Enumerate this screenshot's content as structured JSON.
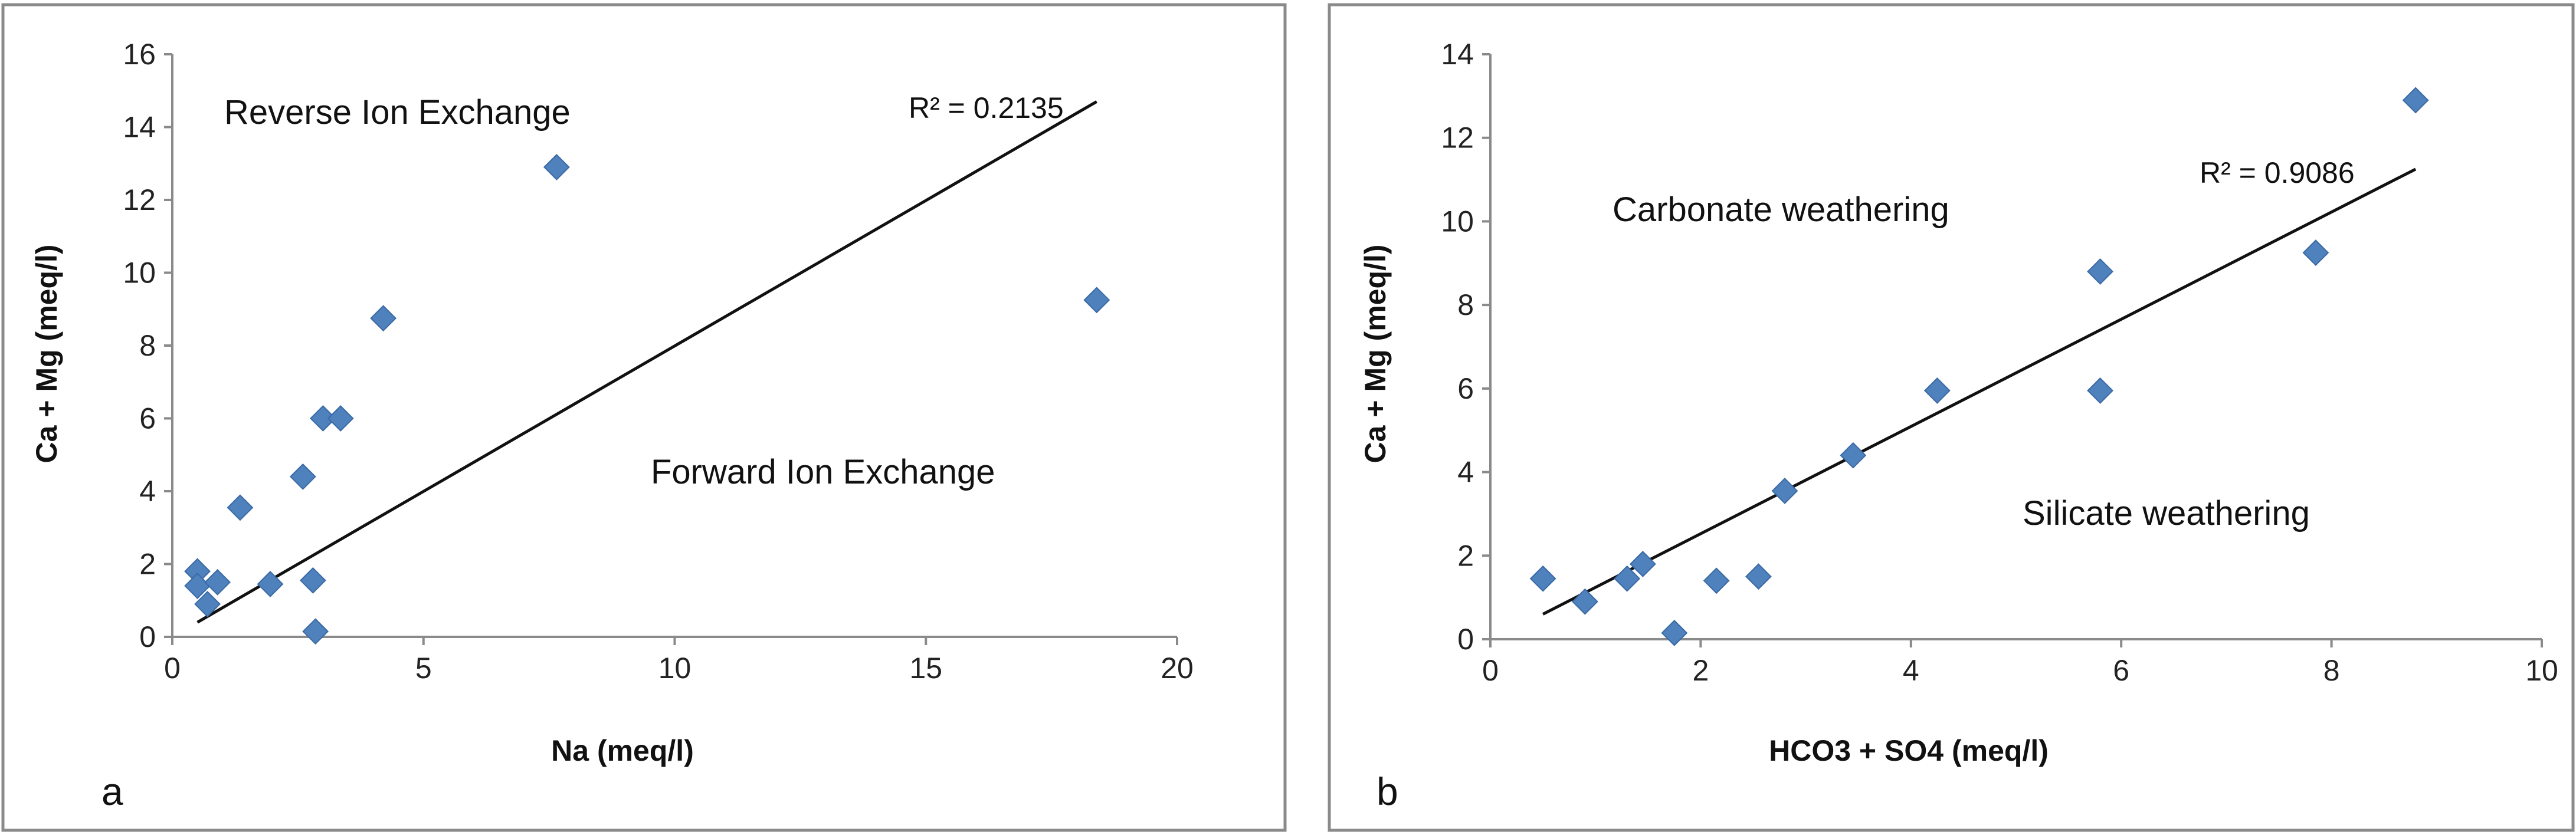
{
  "chart_data": [
    {
      "panel": "a",
      "type": "scatter",
      "xlabel": "Na (meq/l)",
      "ylabel": "Ca + Mg (meq/l)",
      "xlim": [
        0,
        20
      ],
      "ylim": [
        0,
        16
      ],
      "xticks": [
        0,
        5,
        10,
        15,
        20
      ],
      "yticks": [
        0,
        2,
        4,
        6,
        8,
        10,
        12,
        14,
        16
      ],
      "points": [
        {
          "x": 0.5,
          "y": 1.8
        },
        {
          "x": 0.5,
          "y": 1.4
        },
        {
          "x": 0.7,
          "y": 0.9
        },
        {
          "x": 0.9,
          "y": 1.5
        },
        {
          "x": 1.35,
          "y": 3.55
        },
        {
          "x": 1.95,
          "y": 1.45
        },
        {
          "x": 2.6,
          "y": 4.4
        },
        {
          "x": 2.8,
          "y": 1.55
        },
        {
          "x": 2.85,
          "y": 0.15
        },
        {
          "x": 3.0,
          "y": 6.0
        },
        {
          "x": 3.35,
          "y": 6.0
        },
        {
          "x": 4.2,
          "y": 8.75
        },
        {
          "x": 7.65,
          "y": 12.9
        },
        {
          "x": 18.4,
          "y": 9.25
        }
      ],
      "trendline": {
        "x1": 0.5,
        "y1": 0.4,
        "x2": 18.4,
        "y2": 14.7
      },
      "r2_label": "R² = 0.2135",
      "annotations": [
        "Reverse Ion Exchange",
        "Forward Ion Exchange"
      ],
      "panel_label": "a",
      "marker_color": "#4f81bd",
      "line_color": "#111111"
    },
    {
      "panel": "b",
      "type": "scatter",
      "xlabel": "HCO3 + SO4 (meq/l)",
      "ylabel": "Ca + Mg (meq/l)",
      "xlim": [
        0,
        10
      ],
      "ylim": [
        0,
        14
      ],
      "xticks": [
        0,
        2,
        4,
        6,
        8,
        10
      ],
      "yticks": [
        0,
        2,
        4,
        6,
        8,
        10,
        12,
        14
      ],
      "points": [
        {
          "x": 0.5,
          "y": 1.45
        },
        {
          "x": 0.9,
          "y": 0.9
        },
        {
          "x": 1.3,
          "y": 1.45
        },
        {
          "x": 1.45,
          "y": 1.8
        },
        {
          "x": 1.75,
          "y": 0.15
        },
        {
          "x": 2.15,
          "y": 1.4
        },
        {
          "x": 2.55,
          "y": 1.5
        },
        {
          "x": 2.8,
          "y": 3.55
        },
        {
          "x": 3.45,
          "y": 4.4
        },
        {
          "x": 4.25,
          "y": 5.95
        },
        {
          "x": 5.8,
          "y": 5.95
        },
        {
          "x": 5.8,
          "y": 8.8
        },
        {
          "x": 7.85,
          "y": 9.25
        },
        {
          "x": 8.8,
          "y": 12.9
        }
      ],
      "trendline": {
        "x1": 0.5,
        "y1": 0.6,
        "x2": 8.8,
        "y2": 11.25
      },
      "r2_label": "R² = 0.9086",
      "annotations": [
        "Carbonate weathering",
        "Silicate weathering"
      ],
      "panel_label": "b",
      "marker_color": "#4f81bd",
      "line_color": "#111111"
    }
  ]
}
